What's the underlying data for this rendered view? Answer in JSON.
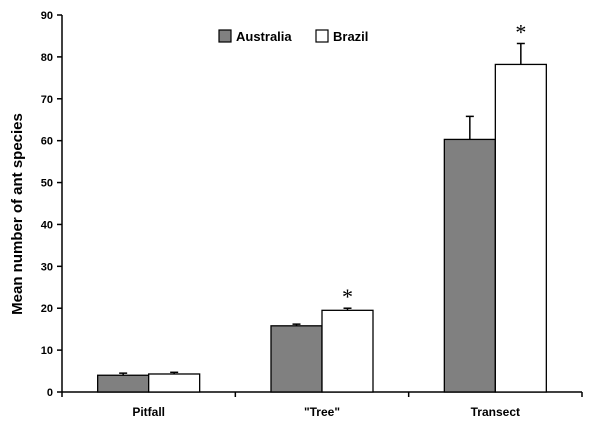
{
  "chart_data": {
    "type": "bar",
    "title": "",
    "xlabel": "",
    "ylabel": "Mean number of ant species",
    "ylim": [
      0,
      90
    ],
    "yticks": [
      0,
      10,
      20,
      30,
      40,
      50,
      60,
      70,
      80,
      90
    ],
    "categories": [
      "Pitfall",
      "\"Tree\"",
      "Transect"
    ],
    "series": [
      {
        "name": "Australia",
        "values": [
          4,
          15.8,
          60.3
        ],
        "errors": [
          0.5,
          0.4,
          5.5
        ],
        "color": "#808080"
      },
      {
        "name": "Brazil",
        "values": [
          4.3,
          19.5,
          78.2
        ],
        "errors": [
          0.4,
          0.5,
          5.0
        ],
        "color": "#ffffff"
      }
    ],
    "significance": [
      {
        "category_index": 1,
        "label": "*"
      },
      {
        "category_index": 2,
        "label": "*"
      }
    ],
    "legend": {
      "position": "top-center"
    },
    "grid": false
  }
}
